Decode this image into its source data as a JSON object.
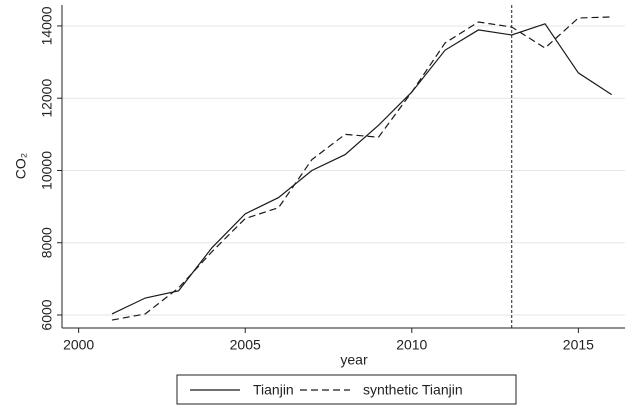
{
  "chart_data": {
    "type": "line",
    "x_label": "year",
    "y_label": "CO₂",
    "x": [
      2001,
      2002,
      2003,
      2004,
      2005,
      2006,
      2007,
      2008,
      2009,
      2010,
      2011,
      2012,
      2013,
      2014,
      2015,
      2016
    ],
    "series": [
      {
        "name": "Tianjin",
        "color": "#1a1a1a",
        "dash": "solid",
        "values": [
          6030,
          6470,
          6670,
          7860,
          8800,
          9250,
          10000,
          10440,
          11250,
          12170,
          13330,
          13890,
          13750,
          14060,
          12700,
          12100
        ]
      },
      {
        "name": "synthetic Tianjin",
        "color": "#1a1a1a",
        "dash": "dashed",
        "values": [
          5860,
          6030,
          6750,
          7750,
          8670,
          8970,
          10300,
          11000,
          10920,
          12170,
          13530,
          14110,
          13970,
          13390,
          14220,
          14250
        ]
      }
    ],
    "xlim": [
      1999.5,
      2016.4
    ],
    "xticks": [
      2000,
      2005,
      2010,
      2015
    ],
    "ylim": [
      5640,
      14580
    ],
    "yticks": [
      6000,
      8000,
      10000,
      12000,
      14000
    ],
    "grid": true,
    "vline": 2013,
    "legend": "bottom"
  }
}
